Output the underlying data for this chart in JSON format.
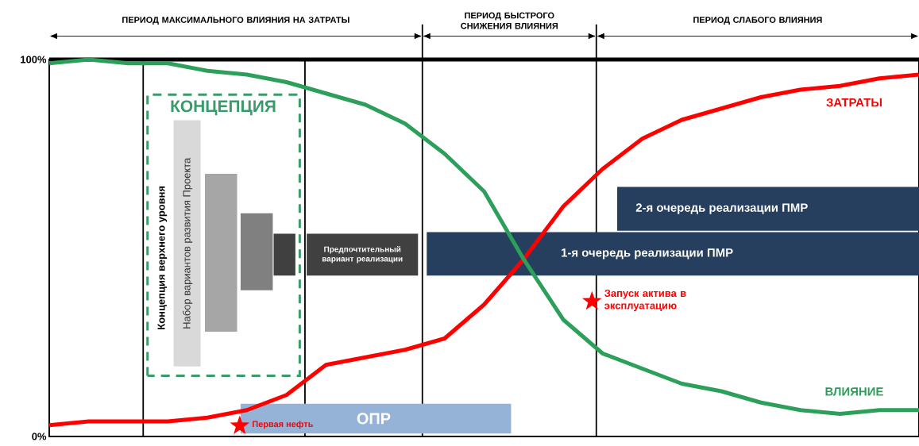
{
  "chart_data": {
    "type": "line",
    "categories": [
      null,
      null,
      null,
      null,
      null,
      null,
      null,
      null,
      null,
      null,
      null,
      null,
      null,
      null,
      null,
      null,
      null,
      null,
      null,
      null,
      null,
      null,
      null
    ],
    "ylim": [
      0,
      100
    ],
    "yticks": [
      {
        "value": 0,
        "label": "0%"
      },
      {
        "value": 100,
        "label": "100%"
      }
    ],
    "tick_labels": "y",
    "series": [
      {
        "name": "ЗАТРАТЫ",
        "color": "#ff0000",
        "values": [
          3,
          4,
          4,
          4,
          5,
          7,
          11,
          19,
          21,
          23,
          26,
          35,
          47,
          61,
          71,
          79,
          84,
          87,
          90,
          92,
          93,
          95,
          96
        ]
      },
      {
        "name": "ВЛИЯНИЕ",
        "color": "#2ca05a",
        "values": [
          99,
          100,
          99,
          99,
          97,
          96,
          94,
          91,
          88,
          83,
          75,
          65,
          47,
          31,
          22,
          18,
          14,
          12,
          9,
          7,
          6,
          7,
          7
        ]
      }
    ],
    "annotations": [
      "ПЕРИОД МАКСИМАЛЬНОГО ВЛИЯНИЯ НА ЗАТРАТЫ",
      "ПЕРИОД БЫСТРОГО СНИЖЕНИЯ ВЛИЯНИЯ",
      "ПЕРИОД СЛАБОГО ВЛИЯНИЯ",
      "КОНЦЕПЦИЯ",
      "Концепция верхнего уровня",
      "Набор вариантов развития Проекта",
      "Предпочтительный вариант реализации",
      "1-я очередь реализации ПМР",
      "2-я очередь реализации ПМР",
      "ОПР",
      "Первая нефть",
      "Запуск актива в эксплуатацию"
    ]
  }
}
